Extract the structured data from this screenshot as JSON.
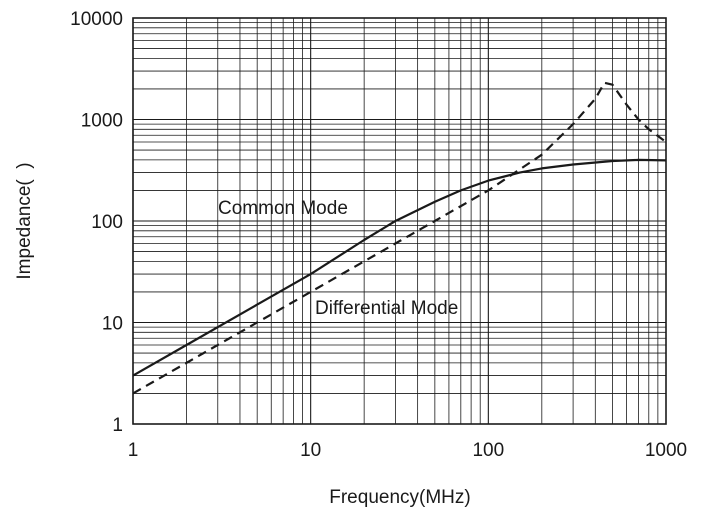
{
  "chart_data": {
    "type": "line",
    "xlabel": "Frequency(MHz)",
    "ylabel": "Impedance(  )",
    "x_scale": "log",
    "y_scale": "log",
    "xlim": [
      1,
      1000
    ],
    "ylim": [
      1,
      10000
    ],
    "grid": true,
    "x_ticks": [
      "1",
      "10",
      "100",
      "1000"
    ],
    "y_ticks": [
      "1",
      "10",
      "100",
      "1000",
      "10000"
    ],
    "annotations": [
      {
        "text": "Common Mode"
      },
      {
        "text": "Differential Mode"
      }
    ],
    "series": [
      {
        "label": "Common Mode",
        "style": "solid",
        "x": [
          1,
          2,
          5,
          10,
          20,
          30,
          50,
          70,
          100,
          150,
          200,
          300,
          500,
          700,
          1000
        ],
        "y": [
          3,
          6,
          15,
          30,
          65,
          100,
          155,
          200,
          250,
          300,
          330,
          360,
          390,
          400,
          395
        ]
      },
      {
        "label": "Differential Mode",
        "style": "dashed",
        "x": [
          1,
          10,
          100,
          200,
          300,
          400,
          450,
          500,
          600,
          700,
          800,
          1000
        ],
        "y": [
          2,
          20,
          200,
          450,
          900,
          1600,
          2300,
          2200,
          1400,
          1000,
          800,
          600
        ]
      }
    ],
    "colors": {
      "line": "#1a1a1a",
      "grid": "#1a1a1a"
    }
  }
}
